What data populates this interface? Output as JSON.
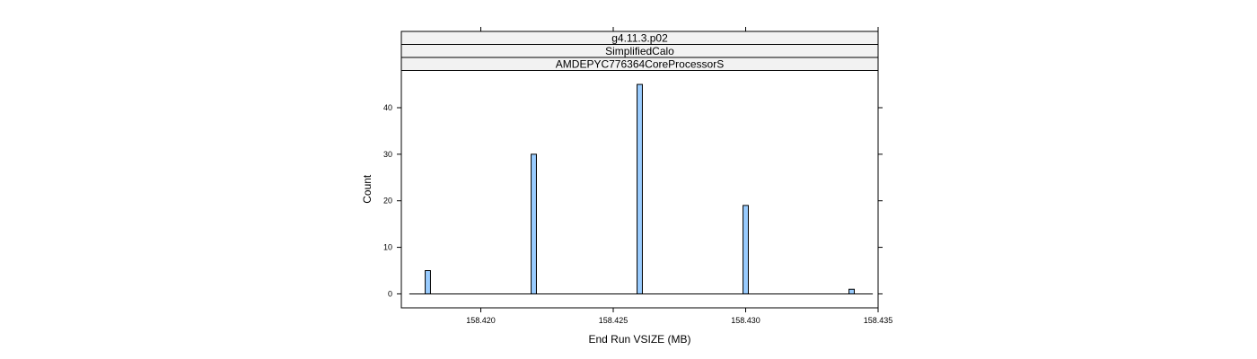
{
  "chart_data": {
    "type": "bar",
    "strips": [
      "g4.11.3.p02",
      "SimplifiedCalo",
      "AMDEPYC776364CoreProcessorS"
    ],
    "xlabel": "End Run VSIZE (MB)",
    "ylabel": "Count",
    "xlim": [
      158.417,
      158.435
    ],
    "ylim": [
      -3,
      48
    ],
    "x_ticks": [
      158.42,
      158.425,
      158.43,
      158.435
    ],
    "x_tick_labels": [
      "158.420",
      "158.425",
      "158.430",
      "158.435"
    ],
    "y_ticks": [
      0,
      10,
      20,
      30,
      40
    ],
    "y_tick_labels": [
      "0",
      "10",
      "20",
      "30",
      "40"
    ],
    "bins": [
      {
        "x": 158.418,
        "count": 5
      },
      {
        "x": 158.422,
        "count": 30
      },
      {
        "x": 158.426,
        "count": 45
      },
      {
        "x": 158.43,
        "count": 19
      },
      {
        "x": 158.434,
        "count": 1
      }
    ],
    "baseline_range": [
      158.4173,
      158.4348
    ],
    "bar_width_data": 0.0002,
    "colors": {
      "bar_fill": "#99ccff",
      "bar_stroke": "#000000",
      "strip_fill": "#f2f2f2",
      "frame": "#000000"
    },
    "grid": false,
    "legend": "none"
  }
}
